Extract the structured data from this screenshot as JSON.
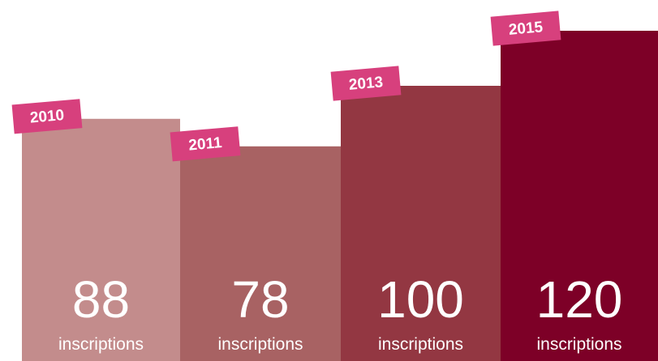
{
  "chart_data": {
    "type": "bar",
    "categories": [
      "2010",
      "2011",
      "2013",
      "2015"
    ],
    "values": [
      88,
      78,
      100,
      120
    ],
    "unit_label": "inscriptions",
    "colors": [
      "#c38c8c",
      "#a86263",
      "#933742",
      "#7d0027"
    ],
    "tag_color": "#d7407d"
  }
}
